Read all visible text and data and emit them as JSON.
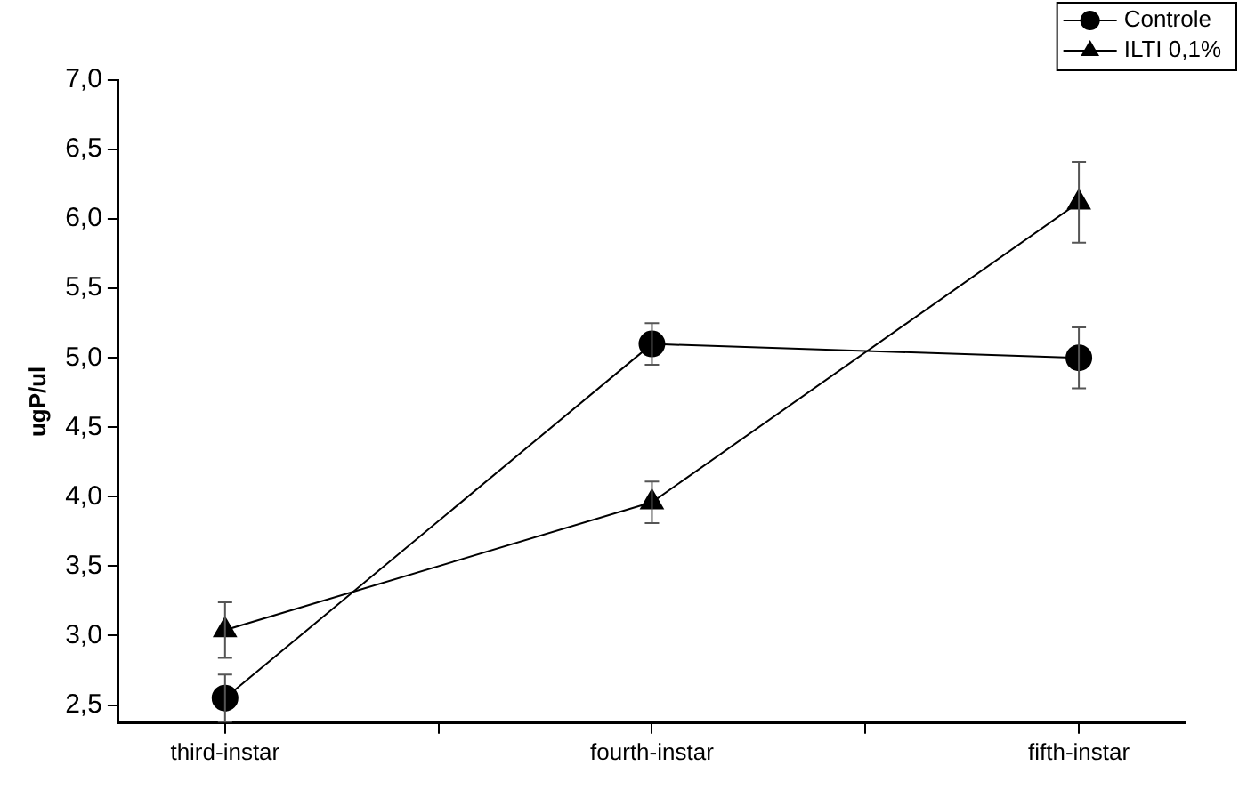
{
  "chart_data": {
    "type": "line",
    "ylabel": "ugP/ul",
    "categories": [
      "third-instar",
      "fourth-instar",
      "fifth-instar"
    ],
    "series": [
      {
        "name": "Controle",
        "color": "#000000",
        "marker": "circle",
        "values": [
          2.55,
          5.1,
          5.0
        ],
        "errors": [
          0.17,
          0.15,
          0.22
        ]
      },
      {
        "name": "ILTI 0,1%",
        "color": "#000000",
        "marker": "triangle",
        "values": [
          3.04,
          3.96,
          6.12
        ],
        "errors": [
          0.2,
          0.15,
          0.29
        ]
      }
    ],
    "ylim": [
      2.37,
      7.0
    ],
    "yticks": [
      {
        "value": 2.5,
        "label": "2,5"
      },
      {
        "value": 3.0,
        "label": "3,0"
      },
      {
        "value": 3.5,
        "label": "3,5"
      },
      {
        "value": 4.0,
        "label": "4,0"
      },
      {
        "value": 4.5,
        "label": "4,5"
      },
      {
        "value": 5.0,
        "label": "5,0"
      },
      {
        "value": 5.5,
        "label": "5,5"
      },
      {
        "value": 6.0,
        "label": "6,0"
      },
      {
        "value": 6.5,
        "label": "6,5"
      },
      {
        "value": 7.0,
        "label": "7,0"
      }
    ],
    "grid": false,
    "legend": "top right",
    "line_style": "solid"
  }
}
